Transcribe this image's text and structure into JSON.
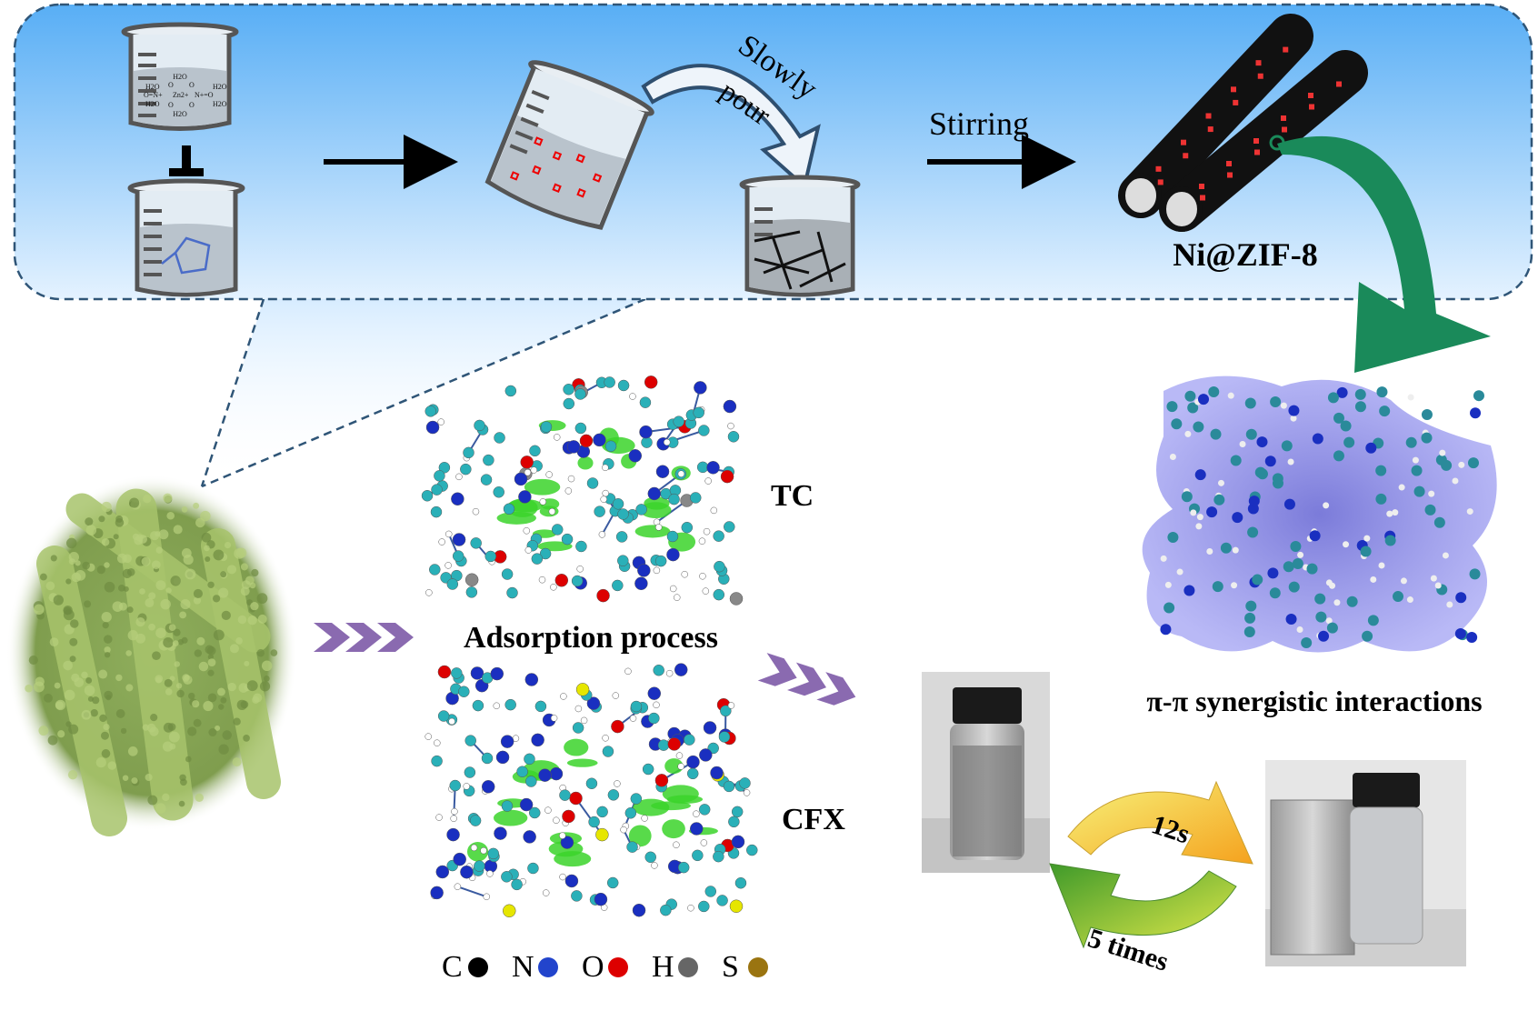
{
  "synthesis": {
    "beaker1_formula": [
      "H2O",
      "O",
      "O",
      "H2O",
      "H2O",
      "O=N+",
      "Zn2+",
      "N+=O",
      "H2O",
      "H2O",
      "O",
      "O",
      "H2O"
    ],
    "slowly": "Slowly",
    "pour": "pour",
    "stirring": "Stirring",
    "product": "Ni@ZIF-8"
  },
  "adsorption": {
    "tc_label": "TC",
    "process_label": "Adsorption process",
    "cfx_label": "CFX"
  },
  "legend": [
    {
      "symbol": "C",
      "color": "#000000"
    },
    {
      "symbol": "N",
      "color": "#2244cc"
    },
    {
      "symbol": "O",
      "color": "#dd0000"
    },
    {
      "symbol": "H",
      "color": "#666666"
    },
    {
      "symbol": "S",
      "color": "#9a7410"
    }
  ],
  "interaction_label": "π-π synergistic interactions",
  "recycle": {
    "time": "12s",
    "cycles": "5 times"
  },
  "colors": {
    "panel_top": "#5fb3f5",
    "panel_bottom": "#e6f3ff",
    "dashed_border": "#2f5577",
    "green_arrow": "#1a8a5a",
    "chevron": "#8a6ab0",
    "sem_green": "#8fad5a",
    "carbon_ball": "#2ab0b8",
    "isosurface": "#6a6ad8"
  }
}
